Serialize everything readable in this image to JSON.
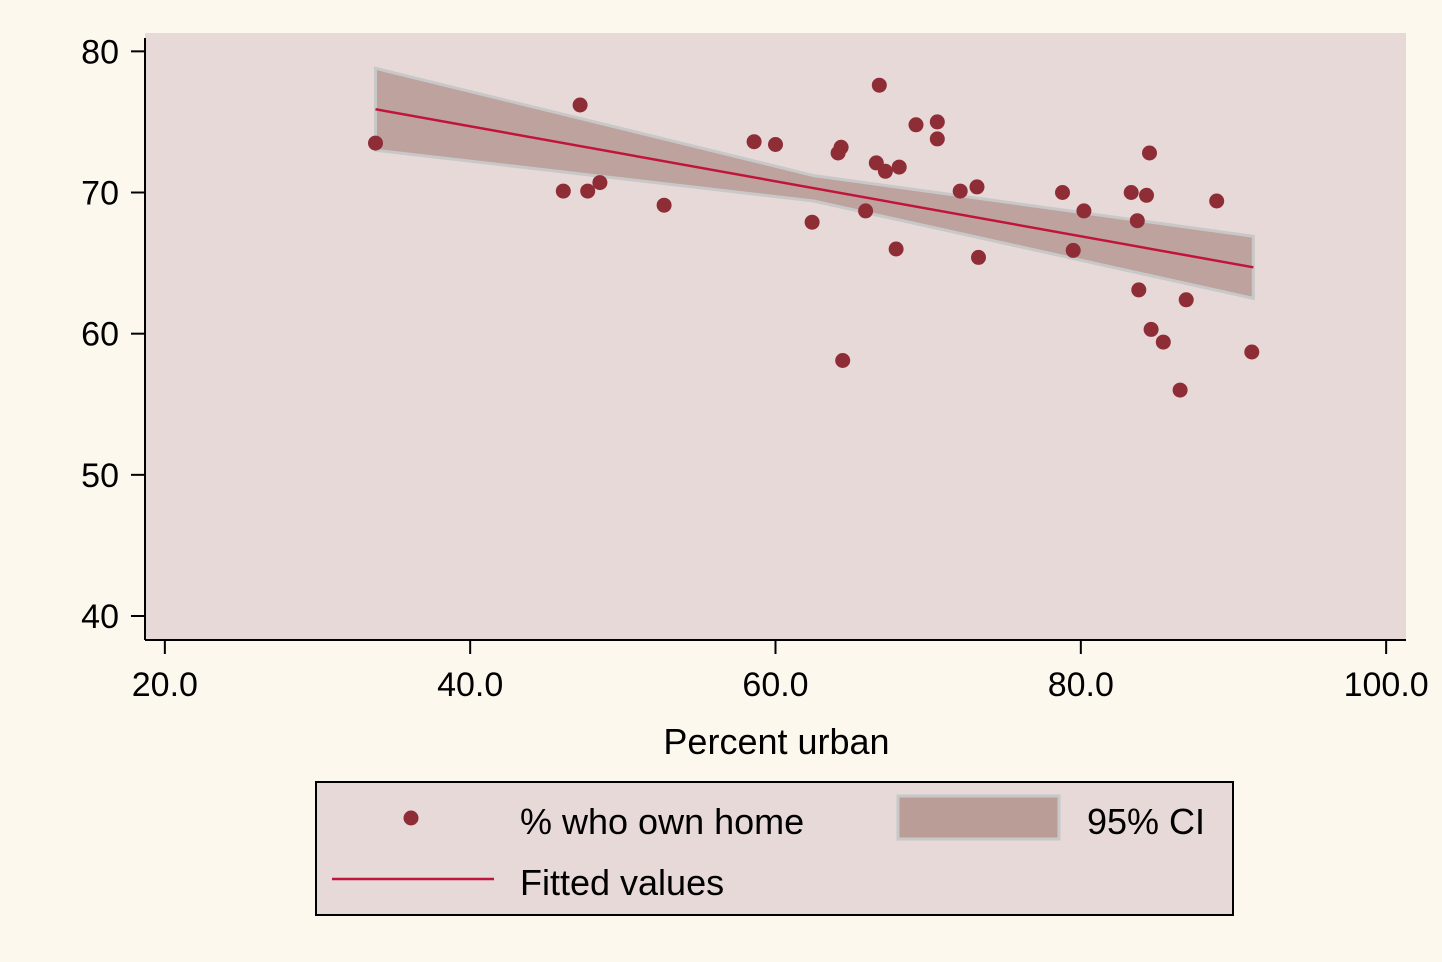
{
  "colors": {
    "page_background": "#fdf8ee",
    "plot_background": "#e6d9d7",
    "marker": "#8f2d36",
    "fit_line": "#c0143a",
    "ci_fill": "#bb9d98",
    "ci_border": "#c8c8c8",
    "axis": "#000000"
  },
  "chart_data": {
    "type": "scatter",
    "title": "",
    "xlabel": "Percent urban",
    "ylabel": "",
    "xlim": [
      18.7,
      101.3
    ],
    "ylim": [
      38.3,
      81.3
    ],
    "xticks": [
      20,
      40,
      60,
      80,
      100
    ],
    "xtick_labels": [
      "20.0",
      "40.0",
      "60.0",
      "80.0",
      "100.0"
    ],
    "yticks": [
      40,
      50,
      60,
      70,
      80
    ],
    "ytick_labels": [
      "40",
      "50",
      "60",
      "70",
      "80"
    ],
    "grid": false,
    "legend_position": "bottom",
    "series": [
      {
        "name": "% who own home",
        "type": "scatter",
        "x": [
          33.8,
          47.2,
          46.1,
          47.7,
          48.5,
          52.7,
          58.6,
          60.0,
          62.4,
          64.1,
          64.3,
          64.4,
          65.9,
          66.6,
          66.8,
          67.2,
          67.9,
          68.1,
          69.2,
          70.6,
          70.6,
          72.1,
          73.2,
          73.3,
          78.8,
          79.5,
          80.2,
          83.3,
          83.7,
          83.8,
          84.3,
          84.5,
          84.6,
          85.4,
          86.5,
          86.9,
          88.9,
          91.2
        ],
        "y": [
          73.5,
          76.2,
          70.1,
          70.1,
          70.7,
          69.1,
          73.6,
          73.4,
          67.9,
          72.8,
          73.2,
          58.1,
          68.7,
          72.1,
          77.6,
          71.5,
          66.0,
          71.8,
          74.8,
          75.0,
          73.8,
          70.1,
          70.4,
          65.4,
          70.0,
          65.9,
          68.7,
          70.0,
          68.0,
          63.1,
          69.8,
          72.8,
          60.3,
          59.4,
          56.0,
          62.4,
          69.4,
          58.7
        ]
      },
      {
        "name": "Fitted values",
        "type": "line",
        "x": [
          33.8,
          91.3
        ],
        "y": [
          75.9,
          64.7
        ]
      },
      {
        "name": "95% CI",
        "type": "area",
        "x": [
          33.8,
          62.5,
          91.3
        ],
        "lower": [
          73.0,
          69.4,
          62.5
        ],
        "upper": [
          78.8,
          71.2,
          66.9
        ]
      }
    ]
  }
}
